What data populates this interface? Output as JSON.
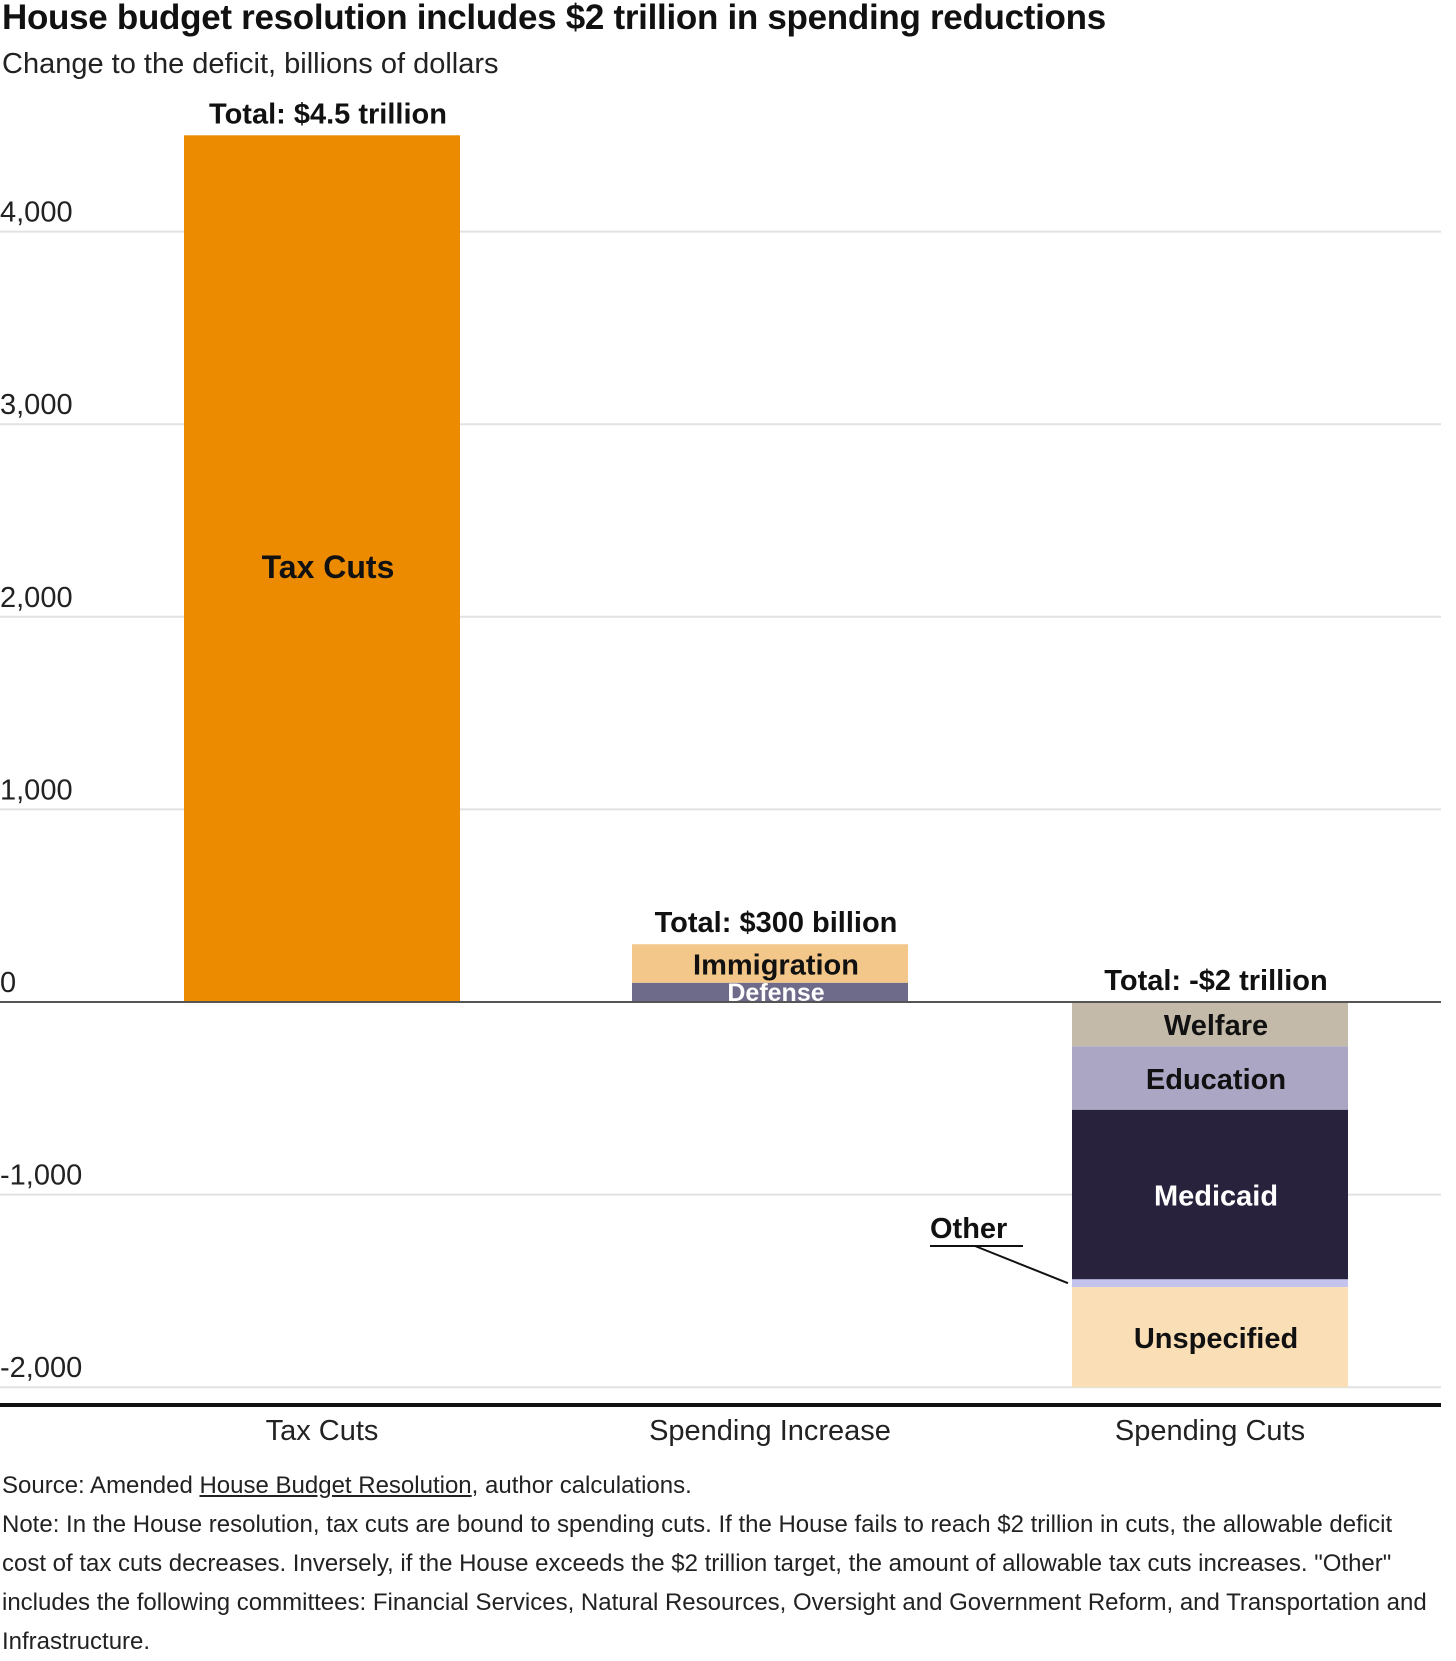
{
  "title": "House budget resolution includes $2 trillion in spending reductions",
  "subtitle": "Change to the deficit, billions of dollars",
  "colors": {
    "tax_cuts": "#ED8B00",
    "immigration": "#F3C78A",
    "defense": "#6E6A8A",
    "welfare": "#C4BAA9",
    "education": "#AAA6C4",
    "medicaid": "#28223D",
    "other": "#C3C3EE",
    "unspecified": "#FADFB6",
    "grid": "#e2e2e2",
    "zero_line": "#555555",
    "axis_line": "#111111"
  },
  "chart_data": {
    "type": "bar",
    "stacked": true,
    "categories": [
      "Tax Cuts",
      "Spending Increase",
      "Spending Cuts"
    ],
    "ylim": [
      -2000,
      4500
    ],
    "yticks": [
      {
        "value": 4000,
        "label": "4,000"
      },
      {
        "value": 3000,
        "label": "3,000"
      },
      {
        "value": 2000,
        "label": "2,000"
      },
      {
        "value": 1000,
        "label": "1,000"
      },
      {
        "value": 0,
        "label": "0"
      },
      {
        "value": -1000,
        "label": "-1,000"
      },
      {
        "value": -2000,
        "label": "-2,000"
      }
    ],
    "grid": true,
    "totals": [
      {
        "category": "Tax Cuts",
        "label": "Total: $4.5 trillion",
        "value": 4500
      },
      {
        "category": "Spending Increase",
        "label": "Total: $300 billion",
        "value": 300
      },
      {
        "category": "Spending Cuts",
        "label": "Total: -$2 trillion",
        "value": -2000
      }
    ],
    "segments": [
      {
        "category": "Tax Cuts",
        "name": "Tax Cuts",
        "value": 4500,
        "color_key": "tax_cuts",
        "label_color": "#111111"
      },
      {
        "category": "Spending Increase",
        "name": "Defense",
        "value": 100,
        "color_key": "defense",
        "label_color": "#ffffff"
      },
      {
        "category": "Spending Increase",
        "name": "Immigration",
        "value": 200,
        "color_key": "immigration",
        "label_color": "#111111"
      },
      {
        "category": "Spending Cuts",
        "name": "Welfare",
        "value": -230,
        "color_key": "welfare",
        "label_color": "#111111"
      },
      {
        "category": "Spending Cuts",
        "name": "Education",
        "value": -330,
        "color_key": "education",
        "label_color": "#111111"
      },
      {
        "category": "Spending Cuts",
        "name": "Medicaid",
        "value": -880,
        "color_key": "medicaid",
        "label_color": "#ffffff"
      },
      {
        "category": "Spending Cuts",
        "name": "Other",
        "value": -40,
        "color_key": "other",
        "label_color": "#111111",
        "callout": true
      },
      {
        "category": "Spending Cuts",
        "name": "Unspecified",
        "value": -520,
        "color_key": "unspecified",
        "label_color": "#111111"
      }
    ]
  },
  "footer": {
    "source_prefix": "Source: Amended ",
    "source_link": "House Budget Resolution",
    "source_suffix": ", author calculations.",
    "note": "Note: In the House resolution, tax cuts are bound to spending cuts. If the House fails to reach $2 trillion in cuts, the allowable deficit cost of tax cuts decreases. Inversely, if the House exceeds the $2 trillion target, the amount of allowable tax cuts increases. \"Other\" includes the following committees: Financial Services, Natural Resources, Oversight and Government Reform, and Transportation and Infrastructure."
  }
}
